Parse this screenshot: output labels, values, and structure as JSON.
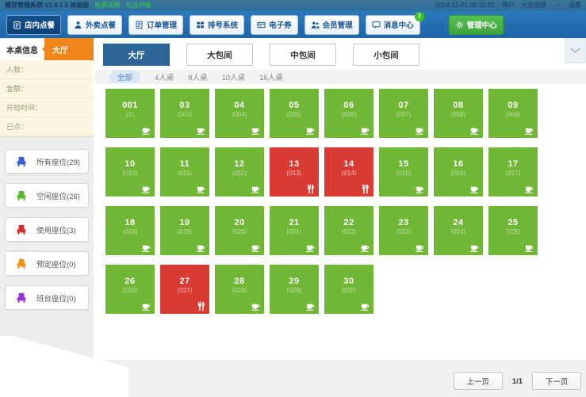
{
  "titlebar": {
    "title": "餐饮管理系统 V2.0.1.5 体验版",
    "promo": "免费试用 · 在线升级",
    "datetime": "2014-12-01 09:32:32",
    "user_label": "用户：大堂经理",
    "minimize": "—",
    "settings": "设置"
  },
  "navbar": {
    "items": [
      {
        "id": "dine-in",
        "label": "店内点餐",
        "icon": "clipboard-icon",
        "active": true
      },
      {
        "id": "takeout",
        "label": "外卖点餐",
        "icon": "person-icon"
      },
      {
        "id": "orders",
        "label": "订单管理",
        "icon": "document-icon"
      },
      {
        "id": "queue",
        "label": "排号系统",
        "icon": "ticket-icon"
      },
      {
        "id": "coupons",
        "label": "电子券",
        "icon": "card-icon"
      },
      {
        "id": "members",
        "label": "会员管理",
        "icon": "people-icon"
      },
      {
        "id": "messages",
        "label": "消息中心",
        "icon": "chat-icon",
        "badge": "3"
      }
    ],
    "admin": {
      "label": "管理中心",
      "icon": "gear-icon"
    }
  },
  "sidebar": {
    "header": {
      "info_tab": "本桌信息",
      "hall_tab": "大厅"
    },
    "info_fields": [
      {
        "label": "人数："
      },
      {
        "label": "金额："
      },
      {
        "label": "开始时间："
      },
      {
        "label": "已点："
      }
    ],
    "seat_filters": [
      {
        "id": "all",
        "label": "所有座位(29)",
        "color": "#3a5fd0"
      },
      {
        "id": "free",
        "label": "空闲座位(26)",
        "color": "#55b82c"
      },
      {
        "id": "used",
        "label": "使用座位(3)",
        "color": "#d42f2b"
      },
      {
        "id": "reserved",
        "label": "预定座位(0)",
        "color": "#ef9211"
      },
      {
        "id": "shift",
        "label": "班台座位(0)",
        "color": "#9b30d9"
      }
    ]
  },
  "main": {
    "room_tabs": [
      {
        "id": "hall",
        "label": "大厅",
        "active": true
      },
      {
        "id": "large-room",
        "label": "大包间"
      },
      {
        "id": "medium-room",
        "label": "中包间"
      },
      {
        "id": "small-room",
        "label": "小包间"
      }
    ],
    "capacity_filters": [
      {
        "id": "all",
        "label": "全部",
        "active": true
      },
      {
        "id": "4",
        "label": "4人桌"
      },
      {
        "id": "8",
        "label": "8人桌"
      },
      {
        "id": "10",
        "label": "10人桌"
      },
      {
        "id": "16",
        "label": "16人桌"
      }
    ],
    "status_colors": {
      "free": "#6fb734",
      "used": "#d93a32"
    },
    "tables": [
      {
        "id": "001",
        "label": "001",
        "code": "(1)",
        "status": "free"
      },
      {
        "id": "03",
        "label": "03",
        "code": "(003)",
        "status": "free"
      },
      {
        "id": "04",
        "label": "04",
        "code": "(004)",
        "status": "free"
      },
      {
        "id": "05",
        "label": "05",
        "code": "(005)",
        "status": "free"
      },
      {
        "id": "06",
        "label": "06",
        "code": "(006)",
        "status": "free"
      },
      {
        "id": "07",
        "label": "07",
        "code": "(007)",
        "status": "free"
      },
      {
        "id": "08",
        "label": "08",
        "code": "(008)",
        "status": "free"
      },
      {
        "id": "09",
        "label": "09",
        "code": "(009)",
        "status": "free"
      },
      {
        "id": "10",
        "label": "10",
        "code": "(010)",
        "status": "free"
      },
      {
        "id": "11",
        "label": "11",
        "code": "(011)",
        "status": "free"
      },
      {
        "id": "12",
        "label": "12",
        "code": "(012)",
        "status": "free"
      },
      {
        "id": "13",
        "label": "13",
        "code": "(013)",
        "status": "used"
      },
      {
        "id": "14",
        "label": "14",
        "code": "(014)",
        "status": "used"
      },
      {
        "id": "15",
        "label": "15",
        "code": "(015)",
        "status": "free"
      },
      {
        "id": "16",
        "label": "16",
        "code": "(016)",
        "status": "free"
      },
      {
        "id": "17",
        "label": "17",
        "code": "(017)",
        "status": "free"
      },
      {
        "id": "18",
        "label": "18",
        "code": "(018)",
        "status": "free"
      },
      {
        "id": "19",
        "label": "19",
        "code": "(019)",
        "status": "free"
      },
      {
        "id": "20",
        "label": "20",
        "code": "(020)",
        "status": "free"
      },
      {
        "id": "21",
        "label": "21",
        "code": "(021)",
        "status": "free"
      },
      {
        "id": "22",
        "label": "22",
        "code": "(022)",
        "status": "free"
      },
      {
        "id": "23",
        "label": "23",
        "code": "(023)",
        "status": "free"
      },
      {
        "id": "24",
        "label": "24",
        "code": "(024)",
        "status": "free"
      },
      {
        "id": "25",
        "label": "25",
        "code": "(025)",
        "status": "free"
      },
      {
        "id": "26",
        "label": "26",
        "code": "(026)",
        "status": "free"
      },
      {
        "id": "27",
        "label": "27",
        "code": "(027)",
        "status": "used"
      },
      {
        "id": "28",
        "label": "28",
        "code": "(028)",
        "status": "free"
      },
      {
        "id": "29",
        "label": "29",
        "code": "(029)",
        "status": "free"
      },
      {
        "id": "30",
        "label": "30",
        "code": "(030)",
        "status": "free"
      }
    ]
  },
  "footer": {
    "prev": "上一页",
    "page": "1/1",
    "next": "下一页"
  }
}
